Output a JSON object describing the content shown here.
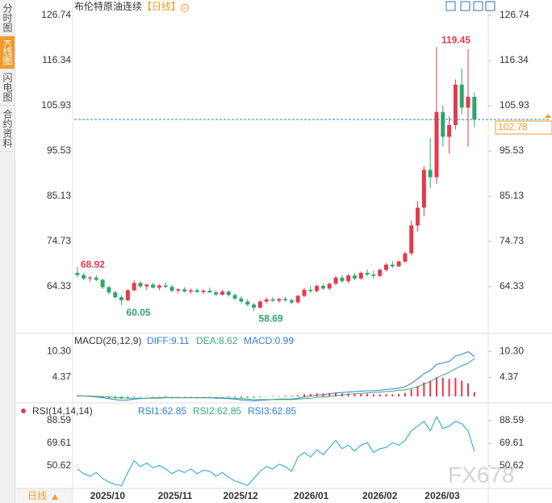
{
  "sidebar": {
    "tabs": [
      "分时图",
      "K线图",
      "闪电图",
      "合约资料"
    ]
  },
  "footer": {
    "period": "日线"
  },
  "watermark": "FX678",
  "chart_data": [
    {
      "type": "candlestick",
      "title": "布伦特原油连续",
      "subtitle": "【日线】",
      "open": [
        67.5,
        67.0,
        66.2,
        66.4,
        65.9,
        64.2,
        63.0,
        61.9,
        61.2,
        63.5,
        65.2,
        64.4,
        64.8,
        64.1,
        64.6,
        64.3,
        63.4,
        63.7,
        63.2,
        63.5,
        63.1,
        63.4,
        63.0,
        62.5,
        63.2,
        62.4,
        61.6,
        60.9,
        60.2,
        59.5,
        60.9,
        61.4,
        61.1,
        61.5,
        61.2,
        60.7,
        62.2,
        63.6,
        63.3,
        64.5,
        63.9,
        65.0,
        66.4,
        65.6,
        66.9,
        66.2,
        67.5,
        67.1,
        66.8,
        68.2,
        69.4,
        69.0,
        70.1,
        72.0,
        78.4,
        82.5,
        91.2,
        89.5,
        104.5,
        98.8,
        101.5,
        110.8,
        105.5,
        108.0
      ],
      "high": [
        68.92,
        67.5,
        66.8,
        67.0,
        66.2,
        64.6,
        63.4,
        62.4,
        63.8,
        65.8,
        65.6,
        65.0,
        65.2,
        64.9,
        65.3,
        64.7,
        64.0,
        64.2,
        63.9,
        64.0,
        63.8,
        64.1,
        63.5,
        63.6,
        63.5,
        62.8,
        62.1,
        61.5,
        60.6,
        61.2,
        61.8,
        61.9,
        61.8,
        62.0,
        61.6,
        62.5,
        64.0,
        64.5,
        64.8,
        65.0,
        65.3,
        66.8,
        67.0,
        67.2,
        67.5,
        67.8,
        68.3,
        68.0,
        68.5,
        69.8,
        70.2,
        70.5,
        72.4,
        79.5,
        84.0,
        92.0,
        98.5,
        119.45,
        106.0,
        103.5,
        112.0,
        114.5,
        119.0,
        109.0
      ],
      "low": [
        66.5,
        65.8,
        65.5,
        65.6,
        63.8,
        62.5,
        61.5,
        60.05,
        61.0,
        63.2,
        64.0,
        63.6,
        63.9,
        63.5,
        64.0,
        63.0,
        62.8,
        63.0,
        62.7,
        62.9,
        62.6,
        62.9,
        62.2,
        62.3,
        62.0,
        61.2,
        60.5,
        59.8,
        58.69,
        59.3,
        60.5,
        60.8,
        60.6,
        60.9,
        60.3,
        60.5,
        61.9,
        62.9,
        63.0,
        63.6,
        63.5,
        64.7,
        65.2,
        65.1,
        65.8,
        65.9,
        66.7,
        66.2,
        66.5,
        67.8,
        68.6,
        68.8,
        69.8,
        71.5,
        77.0,
        80.5,
        87.0,
        88.0,
        96.5,
        95.0,
        100.5,
        104.0,
        96.5,
        101.0
      ],
      "close": [
        67.0,
        66.2,
        66.4,
        65.9,
        64.2,
        63.0,
        61.9,
        61.2,
        63.5,
        65.2,
        64.4,
        64.8,
        64.1,
        64.6,
        64.3,
        63.4,
        63.7,
        63.2,
        63.5,
        63.1,
        63.4,
        63.0,
        62.5,
        63.2,
        62.4,
        61.6,
        60.9,
        60.2,
        59.5,
        60.9,
        61.4,
        61.1,
        61.5,
        61.2,
        60.7,
        62.2,
        63.6,
        63.3,
        64.5,
        63.9,
        65.0,
        66.4,
        65.6,
        66.9,
        66.2,
        67.5,
        67.1,
        66.8,
        68.2,
        69.4,
        69.0,
        70.1,
        72.0,
        78.4,
        82.5,
        91.2,
        89.5,
        104.5,
        98.8,
        101.5,
        110.8,
        105.5,
        108.0,
        102.78
      ],
      "up_color": "#e23b4e",
      "down_color": "#2ea66c",
      "last_price_color": "#f39a2b",
      "ylim": [
        54.12,
        126.74
      ],
      "yticks": [
        126.74,
        116.34,
        105.93,
        95.53,
        85.13,
        74.73,
        64.33
      ],
      "xlim": [
        -0.5,
        65.2
      ],
      "xticks": [
        {
          "value": 4.8,
          "label": "2025/10"
        },
        {
          "value": 15.5,
          "label": "2025/11"
        },
        {
          "value": 25.9,
          "label": "2025/12"
        },
        {
          "value": 37.1,
          "label": "2026/01"
        },
        {
          "value": 48,
          "label": "2026/02"
        },
        {
          "value": 57.9,
          "label": "2026/03"
        }
      ]
    },
    {
      "type": "macd",
      "title": "MACD(26,12,9)",
      "ylim": [
        -1.1,
        13.63
      ],
      "yticks": [
        {
          "value": 10.3,
          "label": "10.30"
        },
        4.37
      ],
      "series": [
        {
          "label": "DIFF:9.11",
          "color": "#2f7fd3",
          "values": [
            0.2,
            0.1,
            0.0,
            -0.1,
            -0.3,
            -0.5,
            -0.7,
            -0.9,
            -0.8,
            -0.6,
            -0.5,
            -0.4,
            -0.3,
            -0.3,
            -0.2,
            -0.3,
            -0.3,
            -0.3,
            -0.3,
            -0.3,
            -0.3,
            -0.3,
            -0.4,
            -0.4,
            -0.5,
            -0.6,
            -0.8,
            -0.9,
            -1.0,
            -0.9,
            -0.8,
            -0.7,
            -0.6,
            -0.6,
            -0.6,
            -0.4,
            -0.1,
            0.1,
            0.3,
            0.4,
            0.6,
            0.8,
            0.9,
            1.0,
            1.1,
            1.2,
            1.3,
            1.3,
            1.4,
            1.6,
            1.7,
            1.9,
            2.2,
            3.0,
            4.0,
            5.2,
            5.9,
            7.3,
            7.6,
            8.0,
            9.2,
            9.6,
            10.2,
            9.11
          ]
        },
        {
          "label": "DEA:8.62",
          "color": "#3aaa6e",
          "values": [
            0.1,
            0.1,
            0.1,
            0.0,
            0.0,
            -0.1,
            -0.2,
            -0.3,
            -0.4,
            -0.4,
            -0.4,
            -0.4,
            -0.4,
            -0.4,
            -0.3,
            -0.3,
            -0.3,
            -0.3,
            -0.3,
            -0.3,
            -0.3,
            -0.3,
            -0.3,
            -0.3,
            -0.4,
            -0.4,
            -0.5,
            -0.6,
            -0.7,
            -0.7,
            -0.7,
            -0.7,
            -0.7,
            -0.7,
            -0.7,
            -0.6,
            -0.5,
            -0.4,
            -0.2,
            -0.1,
            0.0,
            0.2,
            0.3,
            0.5,
            0.6,
            0.7,
            0.8,
            0.9,
            1.0,
            1.1,
            1.2,
            1.4,
            1.5,
            1.8,
            2.2,
            2.8,
            3.4,
            4.2,
            4.9,
            5.5,
            6.3,
            7.0,
            7.6,
            8.62
          ]
        },
        {
          "type": "bar",
          "label": "MACD:0.99",
          "color": "#2f7fd3",
          "up_color": "#e23b4e",
          "down_color": "#2ea66c",
          "values": [
            0.2,
            0.1,
            -0.1,
            -0.2,
            -0.3,
            -0.4,
            -0.5,
            -0.6,
            -0.4,
            -0.2,
            -0.1,
            0.1,
            0.1,
            0.1,
            0.1,
            0,
            0,
            0,
            0,
            0,
            0,
            0,
            -0.1,
            -0.1,
            -0.2,
            -0.2,
            -0.3,
            -0.3,
            -0.3,
            -0.2,
            -0.1,
            0.1,
            0.1,
            0.2,
            0.2,
            0.3,
            0.5,
            0.6,
            0.7,
            0.7,
            0.8,
            0.8,
            0.7,
            0.7,
            0.6,
            0.6,
            0.6,
            0.5,
            0.5,
            0.5,
            0.5,
            0.6,
            0.8,
            1.6,
            2.4,
            3.2,
            3.6,
            4.4,
            4.3,
            4.0,
            4.2,
            3.6,
            3.0,
            0.99
          ]
        }
      ]
    },
    {
      "type": "rsi",
      "title": "RSI(14,14,14)",
      "ylim": [
        31.6,
        100.8
      ],
      "yticks": [
        88.59,
        69.61,
        50.62
      ],
      "legend": [
        {
          "label": "RSI1:62.85",
          "color": "#2f7fd3"
        },
        {
          "label": "RSI2:62.85",
          "color": "#3aaa6e"
        },
        {
          "label": "RSI3:62.85",
          "color": "#2f7fd3"
        }
      ],
      "series": [
        {
          "color": "#1fa3d6",
          "values": [
            48,
            44,
            42,
            45,
            40,
            37,
            35,
            34,
            45,
            55,
            50,
            53,
            49,
            51,
            48,
            44,
            47,
            45,
            48,
            44,
            47,
            46,
            42,
            45,
            41,
            38,
            36,
            34,
            40,
            46,
            50,
            48,
            52,
            50,
            46,
            58,
            62,
            58,
            64,
            60,
            66,
            72,
            65,
            68,
            63,
            68,
            70,
            62,
            65,
            66,
            70,
            68,
            72,
            80,
            84,
            88,
            80,
            92,
            82,
            84,
            88,
            86,
            80,
            62.85
          ]
        }
      ]
    }
  ]
}
